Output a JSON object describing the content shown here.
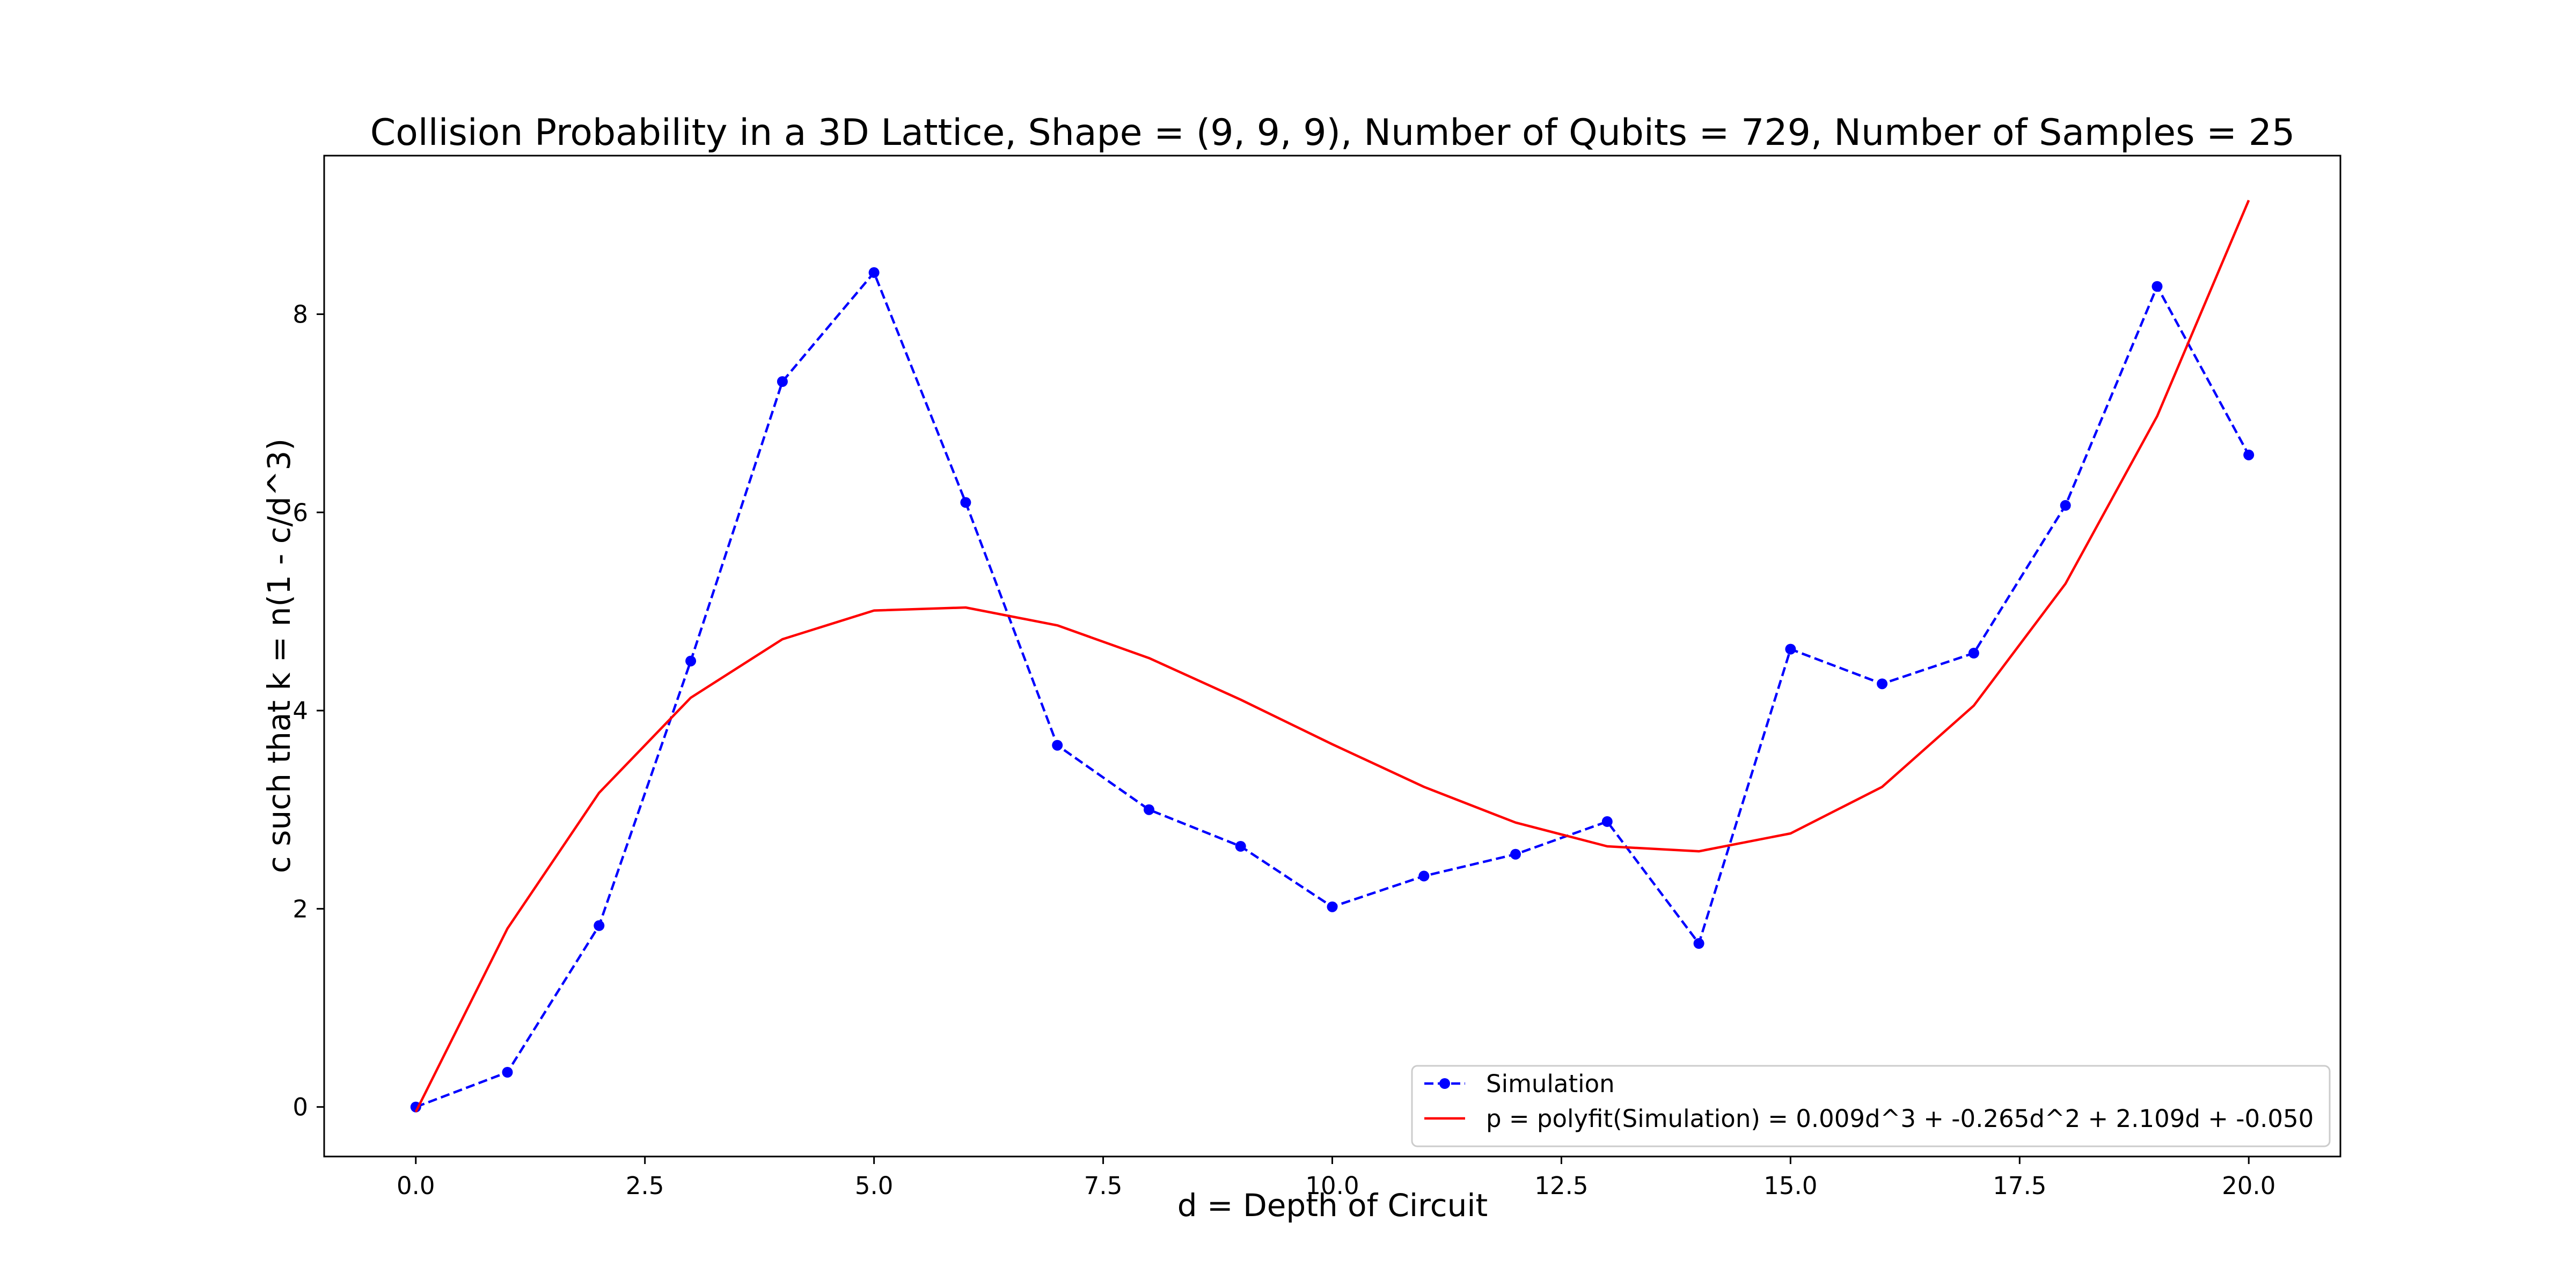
{
  "chart_data": {
    "type": "line",
    "title": "Collision Probability in a 3D Lattice, Shape = (9, 9, 9), Number of Qubits = 729, Number of Samples = 25",
    "xlabel": "d = Depth of Circuit",
    "ylabel": "c such that k = n(1 - c/d^3)",
    "xlim": [
      -1.0,
      21.0
    ],
    "ylim": [
      -0.5,
      9.6
    ],
    "x_ticks": [
      0.0,
      2.5,
      5.0,
      7.5,
      10.0,
      12.5,
      15.0,
      17.5,
      20.0
    ],
    "x_tick_labels": [
      "0.0",
      "2.5",
      "5.0",
      "7.5",
      "10.0",
      "12.5",
      "15.0",
      "17.5",
      "20.0"
    ],
    "y_ticks": [
      0,
      2,
      4,
      6,
      8
    ],
    "y_tick_labels": [
      "0",
      "2",
      "4",
      "6",
      "8"
    ],
    "grid": false,
    "legend_position": "lower-right",
    "x": [
      0,
      1,
      2,
      3,
      4,
      5,
      6,
      7,
      8,
      9,
      10,
      11,
      12,
      13,
      14,
      15,
      16,
      17,
      18,
      19,
      20
    ],
    "series": [
      {
        "name": "Simulation",
        "style": "dashed-markers",
        "color": "#0000ff",
        "values": [
          0.0,
          0.35,
          1.83,
          4.5,
          7.32,
          8.42,
          6.1,
          3.65,
          3.0,
          2.63,
          2.02,
          2.33,
          2.55,
          2.88,
          1.65,
          4.62,
          4.27,
          4.58,
          6.07,
          8.28,
          6.58
        ]
      },
      {
        "name": "p = polyfit(Simulation) = 0.009d^3 + -0.265d^2 + 2.109d + -0.050",
        "style": "solid",
        "color": "#ff0000",
        "values": [
          -0.05,
          1.8,
          3.17,
          4.13,
          4.72,
          5.01,
          5.04,
          4.86,
          4.53,
          4.11,
          3.66,
          3.23,
          2.87,
          2.63,
          2.58,
          2.76,
          3.23,
          4.05,
          5.28,
          6.97,
          9.15
        ]
      }
    ]
  }
}
